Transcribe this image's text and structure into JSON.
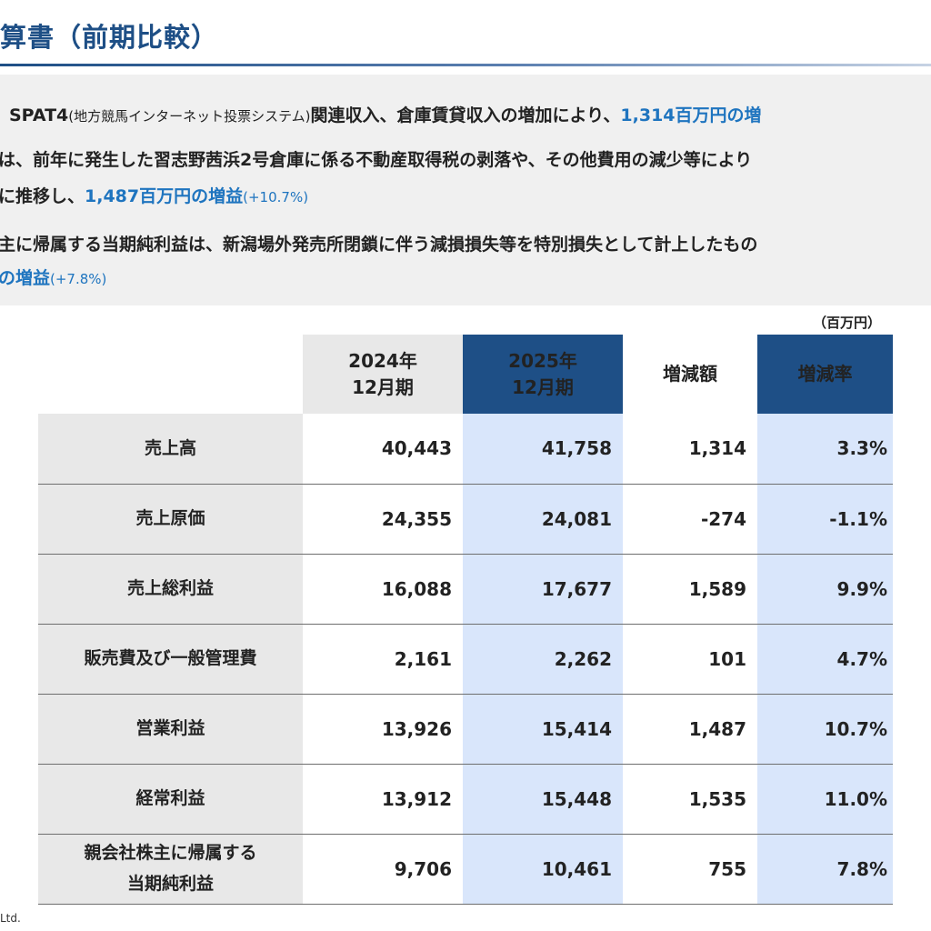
{
  "title": "算書（前期比較）",
  "summary": {
    "line1": {
      "a": "SPAT4",
      "b": "(地方競馬インターネット投票システム)",
      "c": "関連収入、倉庫賃貸収入の増加により、",
      "d": "1,314百万円の増"
    },
    "line2": "は、前年に発生した習志野茜浜2号倉庫に係る不動産取得税の剥落や、その他費用の減少等により",
    "line3": {
      "a": "に推移し、",
      "b": "1,487百万円の増益",
      "c": "(+10.7%)"
    },
    "line4": "主に帰属する当期純利益は、新潟場外発売所閉鎖に伴う減損損失等を特別損失として計上したもの",
    "line5": {
      "a": "の増益",
      "b": "(+7.8%)"
    }
  },
  "unit": "（百万円）",
  "table": {
    "headers": {
      "prev": [
        "2024年",
        "12月期"
      ],
      "cur": [
        "2025年",
        "12月期"
      ],
      "diff": "増減額",
      "rate": "増減率"
    },
    "rows": [
      {
        "label": [
          "売上高"
        ],
        "prev": "40,443",
        "cur": "41,758",
        "diff": "1,314",
        "rate": "3.3%",
        "negative": false
      },
      {
        "label": [
          "売上原価"
        ],
        "prev": "24,355",
        "cur": "24,081",
        "diff": "-274",
        "rate": "-1.1%",
        "negative": true
      },
      {
        "label": [
          "売上総利益"
        ],
        "prev": "16,088",
        "cur": "17,677",
        "diff": "1,589",
        "rate": "9.9%",
        "negative": false
      },
      {
        "label": [
          "販売費及び一般管理費"
        ],
        "prev": "2,161",
        "cur": "2,262",
        "diff": "101",
        "rate": "4.7%",
        "negative": false
      },
      {
        "label": [
          "営業利益"
        ],
        "prev": "13,926",
        "cur": "15,414",
        "diff": "1,487",
        "rate": "10.7%",
        "negative": false
      },
      {
        "label": [
          "経常利益"
        ],
        "prev": "13,912",
        "cur": "15,448",
        "diff": "1,535",
        "rate": "11.0%",
        "negative": false
      },
      {
        "label": [
          "親会社株主に帰属する",
          "当期純利益"
        ],
        "prev": "9,706",
        "cur": "10,461",
        "diff": "755",
        "rate": "7.8%",
        "negative": false
      }
    ]
  },
  "footer": "Ltd.",
  "colors": {
    "accent": "#1e4f86",
    "highlight": "#1e74bf",
    "negative": "#e00000",
    "current_column_bg": "#d9e6fb"
  }
}
